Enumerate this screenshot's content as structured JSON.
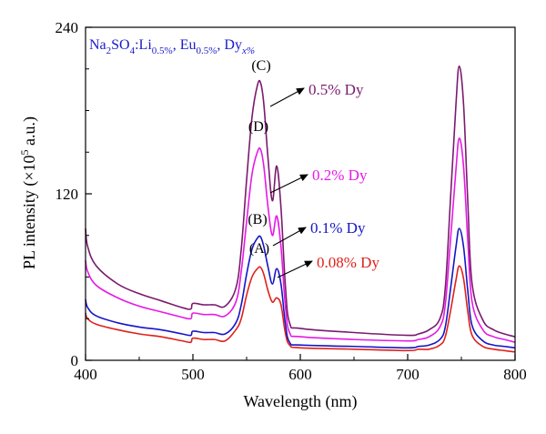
{
  "chart_data": {
    "type": "line",
    "title_parts": {
      "a": "Na",
      "a_sub": "2",
      "b": "SO",
      "b_sub": "4",
      "c": ":Li",
      "c_sub": "0.5%",
      "d": ", Eu",
      "d_sub": "0.5%",
      "e": ", Dy",
      "e_sub": "x%"
    },
    "xlabel": "Wavelength (nm)",
    "ylabel_prefix": "PL intensity (×10",
    "ylabel_sup": "5",
    "ylabel_suffix": " a.u.)",
    "xlim": [
      400,
      800
    ],
    "ylim": [
      0,
      240
    ],
    "xticks": [
      400,
      500,
      600,
      700,
      800
    ],
    "yticks": [
      0,
      120,
      240
    ],
    "colors": {
      "s008": "#e0201a",
      "s01": "#1515c8",
      "s02": "#e619e6",
      "s05": "#7a1a6e",
      "axis": "#000000"
    },
    "series": [
      {
        "name": "0.08% Dy",
        "letter": "(A)",
        "color": "#e0201a",
        "x": [
          400,
          402,
          410,
          430,
          450,
          470,
          490,
          498,
          500,
          510,
          520,
          530,
          540,
          545,
          550,
          555,
          560,
          563,
          566,
          570,
          574,
          578,
          582,
          586,
          590,
          600,
          650,
          700,
          710,
          720,
          730,
          735,
          740,
          745,
          748,
          752,
          756,
          760,
          770,
          780,
          790,
          800
        ],
        "y": [
          34,
          30,
          26,
          22,
          19,
          17,
          14,
          13,
          16,
          15,
          15,
          14,
          22,
          30,
          47,
          60,
          66,
          67,
          62,
          50,
          42,
          45,
          40,
          20,
          11,
          9,
          8,
          7,
          8,
          8,
          11,
          17,
          36,
          58,
          68,
          59,
          35,
          18,
          10,
          8,
          7,
          6
        ]
      },
      {
        "name": "0.1% Dy",
        "letter": "(B)",
        "color": "#1515c8",
        "x": [
          400,
          402,
          410,
          430,
          450,
          470,
          490,
          498,
          500,
          510,
          520,
          530,
          540,
          545,
          550,
          555,
          560,
          563,
          566,
          570,
          574,
          578,
          582,
          586,
          590,
          600,
          650,
          700,
          710,
          720,
          730,
          735,
          740,
          745,
          748,
          752,
          756,
          760,
          770,
          780,
          790,
          800
        ],
        "y": [
          44,
          38,
          32,
          27,
          24,
          22,
          19,
          18,
          21,
          20,
          20,
          19,
          27,
          40,
          62,
          80,
          88,
          89,
          82,
          67,
          55,
          66,
          55,
          27,
          13,
          11,
          10,
          9,
          10,
          11,
          15,
          24,
          52,
          82,
          95,
          82,
          50,
          25,
          14,
          11,
          10,
          9
        ]
      },
      {
        "name": "0.2% Dy",
        "letter": "(D)",
        "color": "#e619e6",
        "x": [
          400,
          402,
          410,
          430,
          450,
          470,
          490,
          498,
          500,
          510,
          520,
          530,
          540,
          545,
          550,
          555,
          560,
          563,
          566,
          570,
          574,
          578,
          582,
          586,
          590,
          600,
          650,
          700,
          710,
          720,
          730,
          735,
          740,
          745,
          748,
          752,
          756,
          760,
          770,
          780,
          790,
          800
        ],
        "y": [
          72,
          64,
          54,
          45,
          39,
          35,
          31,
          30,
          34,
          33,
          33,
          32,
          42,
          64,
          100,
          134,
          150,
          152,
          140,
          110,
          90,
          104,
          82,
          40,
          20,
          17,
          15,
          14,
          15,
          17,
          24,
          40,
          88,
          138,
          160,
          140,
          86,
          42,
          22,
          17,
          15,
          13
        ]
      },
      {
        "name": "0.5% Dy",
        "letter": "(C)",
        "color": "#7a1a6e",
        "x": [
          400,
          402,
          410,
          430,
          450,
          470,
          490,
          498,
          500,
          510,
          520,
          530,
          540,
          545,
          550,
          555,
          560,
          563,
          566,
          570,
          574,
          578,
          582,
          586,
          590,
          600,
          650,
          700,
          710,
          720,
          730,
          735,
          740,
          745,
          748,
          752,
          756,
          760,
          770,
          780,
          790,
          800
        ],
        "y": [
          95,
          82,
          68,
          55,
          48,
          43,
          38,
          37,
          41,
          40,
          40,
          39,
          52,
          80,
          130,
          175,
          198,
          200,
          185,
          145,
          115,
          140,
          110,
          55,
          27,
          23,
          20,
          18,
          19,
          22,
          30,
          52,
          118,
          185,
          212,
          185,
          114,
          55,
          29,
          22,
          19,
          17
        ]
      }
    ],
    "annotations": [
      {
        "letter": "(C)",
        "text": "0.5% Dy",
        "color": "#7a1a6e"
      },
      {
        "letter": "(D)",
        "text": "0.2% Dy",
        "color": "#e619e6"
      },
      {
        "letter": "(B)",
        "text": "0.1% Dy",
        "color": "#1515c8"
      },
      {
        "letter": "(A)",
        "text": "0.08% Dy",
        "color": "#e0201a"
      }
    ],
    "grid": false,
    "legend": "none"
  }
}
